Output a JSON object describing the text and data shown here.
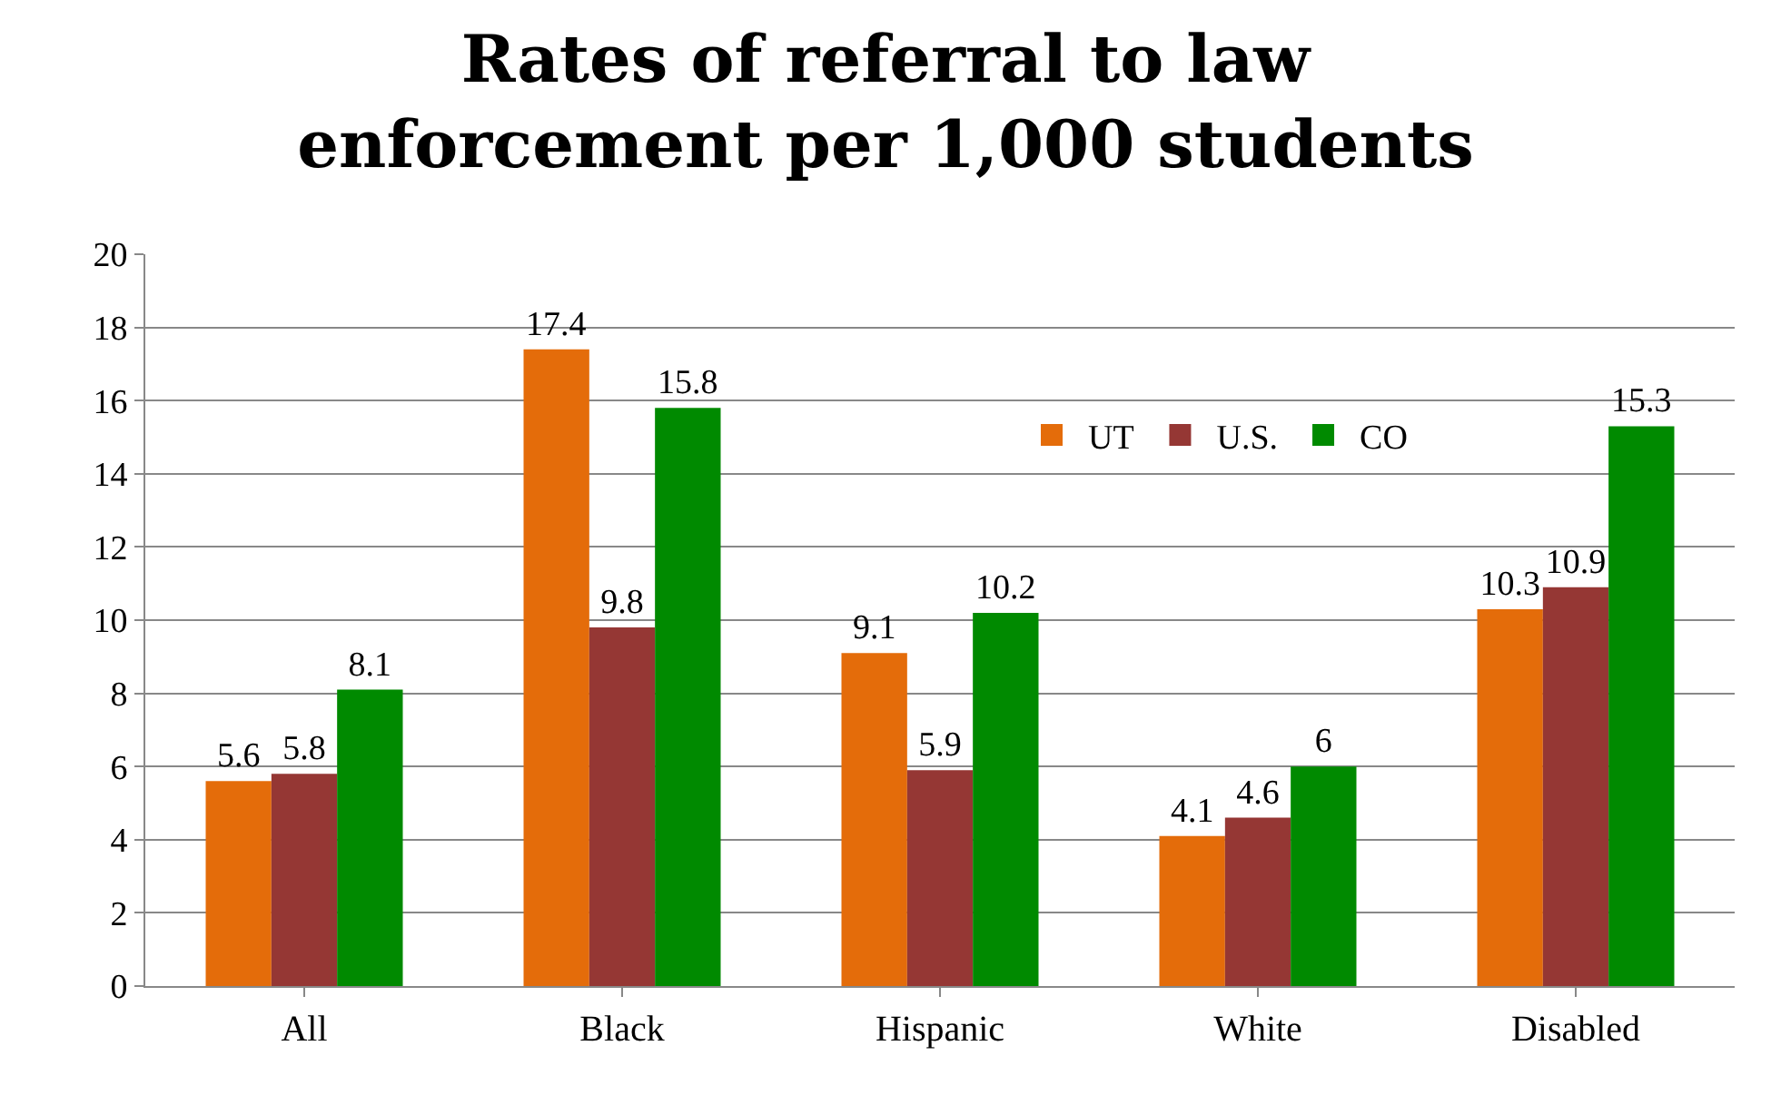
{
  "chart_data": {
    "type": "bar",
    "title": "Rates of referral to law enforcement per 1,000 students",
    "categories": [
      "All",
      "Black",
      "Hispanic",
      "White",
      "Disabled"
    ],
    "series": [
      {
        "name": "UT",
        "color": "#e46c0a",
        "values": [
          5.6,
          17.4,
          9.1,
          4.1,
          10.3
        ]
      },
      {
        "name": "U.S.",
        "color": "#953734",
        "values": [
          5.8,
          9.8,
          5.9,
          4.6,
          10.9
        ]
      },
      {
        "name": "CO",
        "color": "#008a00",
        "values": [
          8.1,
          15.8,
          10.2,
          6,
          15.3
        ]
      }
    ],
    "ylim": [
      0,
      20
    ],
    "yticks": [
      0,
      2,
      4,
      6,
      8,
      10,
      12,
      14,
      16,
      18,
      20
    ],
    "grid": "y",
    "legend": "top right",
    "data_labels": true
  }
}
